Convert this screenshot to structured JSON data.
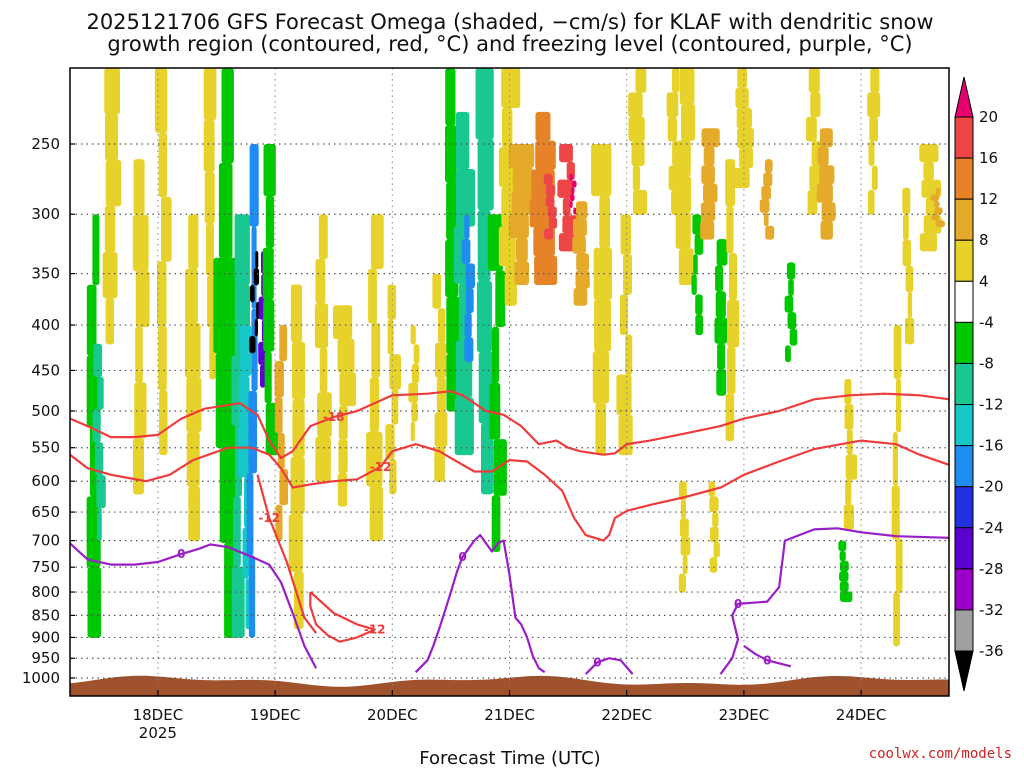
{
  "chart_data": {
    "type": "heatmap",
    "title_lines": [
      "2025121706 GFS Forecast Omega (shaded, −cm/s) for KLAF with dendritic snow",
      "growth region (contoured, red, °C) and freezing level (contoured, purple, °C)"
    ],
    "xlabel": "Forecast Time (UTC)",
    "credit": "coolwx.com/models",
    "x_range_days": [
      17.25,
      24.75
    ],
    "x_ticks": [
      {
        "x": 18,
        "label": "18DEC",
        "sub": "2025"
      },
      {
        "x": 19,
        "label": "19DEC",
        "sub": ""
      },
      {
        "x": 20,
        "label": "20DEC",
        "sub": ""
      },
      {
        "x": 21,
        "label": "21DEC",
        "sub": ""
      },
      {
        "x": 22,
        "label": "22DEC",
        "sub": ""
      },
      {
        "x": 23,
        "label": "23DEC",
        "sub": ""
      },
      {
        "x": 24,
        "label": "24DEC",
        "sub": ""
      }
    ],
    "y_range_hpa": [
      200,
      1030
    ],
    "y_ticks": [
      250,
      300,
      350,
      400,
      450,
      500,
      550,
      600,
      650,
      700,
      750,
      800,
      850,
      900,
      950,
      1000
    ],
    "colorbar": {
      "colors": [
        "#000000",
        "#a0a0a0",
        "#9a00c8",
        "#5a00d0",
        "#2032e0",
        "#1e8cf0",
        "#18c8c8",
        "#18c890",
        "#00c800",
        "#ffffff",
        "#e6d22a",
        "#e6aa2a",
        "#e68228",
        "#ee4646",
        "#e6006e"
      ],
      "labels": [
        "-36",
        "-32",
        "-28",
        "-24",
        "-20",
        "-16",
        "-12",
        "-8",
        "-4",
        "4",
        "8",
        "12",
        "16",
        "20"
      ],
      "under_color": "#000000",
      "over_color": "#e6006e"
    },
    "contours": {
      "red": [
        {
          "label": "-18",
          "points": [
            [
              17.25,
              510
            ],
            [
              17.4,
              520
            ],
            [
              17.6,
              535
            ],
            [
              17.8,
              535
            ],
            [
              18.0,
              532
            ],
            [
              18.2,
              510
            ],
            [
              18.4,
              497
            ],
            [
              18.7,
              490
            ],
            [
              18.85,
              505
            ],
            [
              18.95,
              540
            ],
            [
              19.05,
              565
            ],
            [
              19.15,
              555
            ],
            [
              19.3,
              520
            ],
            [
              19.5,
              508
            ],
            [
              19.7,
              500
            ],
            [
              20.0,
              480
            ],
            [
              20.3,
              478
            ],
            [
              20.5,
              475
            ],
            [
              20.6,
              480
            ],
            [
              20.8,
              500
            ],
            [
              20.95,
              505
            ],
            [
              21.1,
              520
            ],
            [
              21.25,
              545
            ],
            [
              21.4,
              540
            ],
            [
              21.5,
              550
            ],
            [
              21.6,
              555
            ],
            [
              21.8,
              560
            ],
            [
              21.9,
              558
            ],
            [
              22.0,
              545
            ],
            [
              22.2,
              540
            ],
            [
              22.5,
              530
            ],
            [
              22.8,
              520
            ],
            [
              23.0,
              510
            ],
            [
              23.3,
              500
            ],
            [
              23.6,
              485
            ],
            [
              23.9,
              480
            ],
            [
              24.2,
              478
            ],
            [
              24.5,
              480
            ],
            [
              24.75,
              485
            ]
          ]
        },
        {
          "label": "-12",
          "points": [
            [
              17.25,
              560
            ],
            [
              17.4,
              580
            ],
            [
              17.6,
              590
            ],
            [
              17.9,
              600
            ],
            [
              18.1,
              590
            ],
            [
              18.3,
              568
            ],
            [
              18.6,
              550
            ],
            [
              18.8,
              550
            ],
            [
              18.95,
              560
            ],
            [
              19.05,
              580
            ],
            [
              19.15,
              610
            ],
            [
              19.3,
              605
            ],
            [
              19.5,
              600
            ],
            [
              19.7,
              597
            ],
            [
              19.9,
              578
            ],
            [
              20.0,
              555
            ],
            [
              20.2,
              545
            ],
            [
              20.4,
              555
            ],
            [
              20.5,
              565
            ],
            [
              20.7,
              585
            ],
            [
              20.85,
              585
            ],
            [
              21.0,
              568
            ],
            [
              21.15,
              570
            ],
            [
              21.3,
              590
            ],
            [
              21.45,
              615
            ],
            [
              21.55,
              660
            ],
            [
              21.65,
              690
            ],
            [
              21.8,
              700
            ],
            [
              21.85,
              690
            ],
            [
              21.9,
              660
            ],
            [
              22.0,
              648
            ],
            [
              22.2,
              638
            ],
            [
              22.5,
              625
            ],
            [
              22.8,
              610
            ],
            [
              23.0,
              590
            ],
            [
              23.3,
              570
            ],
            [
              23.6,
              552
            ],
            [
              24.0,
              540
            ],
            [
              24.3,
              545
            ],
            [
              24.5,
              560
            ],
            [
              24.75,
              575
            ]
          ]
        },
        {
          "label": "-12",
          "points": [
            [
              18.85,
              590
            ],
            [
              18.95,
              660
            ],
            [
              19.1,
              740
            ],
            [
              19.25,
              855
            ],
            [
              19.35,
              890
            ]
          ]
        },
        {
          "label": "-12",
          "points": [
            [
              19.3,
              800
            ],
            [
              19.5,
              845
            ],
            [
              19.7,
              870
            ],
            [
              19.85,
              882
            ],
            [
              19.7,
              900
            ],
            [
              19.55,
              910
            ],
            [
              19.45,
              895
            ],
            [
              19.35,
              870
            ],
            [
              19.3,
              830
            ],
            [
              19.3,
              800
            ]
          ]
        }
      ],
      "purple": [
        {
          "label": "0",
          "points": [
            [
              17.25,
              705
            ],
            [
              17.4,
              735
            ],
            [
              17.6,
              745
            ],
            [
              17.8,
              745
            ],
            [
              18.0,
              740
            ],
            [
              18.2,
              725
            ],
            [
              18.35,
              715
            ],
            [
              18.45,
              707
            ],
            [
              18.6,
              712
            ],
            [
              18.8,
              730
            ],
            [
              18.95,
              745
            ],
            [
              19.05,
              780
            ],
            [
              19.15,
              845
            ],
            [
              19.25,
              920
            ],
            [
              19.35,
              975
            ]
          ]
        },
        {
          "label": "0",
          "points": [
            [
              20.2,
              985
            ],
            [
              20.3,
              955
            ],
            [
              20.35,
              920
            ],
            [
              20.4,
              880
            ],
            [
              20.45,
              840
            ],
            [
              20.5,
              800
            ],
            [
              20.55,
              760
            ],
            [
              20.6,
              730
            ],
            [
              20.7,
              700
            ],
            [
              20.75,
              690
            ],
            [
              20.85,
              720
            ],
            [
              20.9,
              705
            ],
            [
              20.95,
              700
            ],
            [
              21.0,
              765
            ],
            [
              21.05,
              855
            ],
            [
              21.1,
              870
            ],
            [
              21.15,
              900
            ],
            [
              21.2,
              945
            ],
            [
              21.25,
              975
            ],
            [
              21.3,
              985
            ]
          ]
        },
        {
          "label": "0",
          "points": [
            [
              21.65,
              990
            ],
            [
              21.75,
              960
            ],
            [
              21.85,
              950
            ],
            [
              21.95,
              955
            ],
            [
              22.05,
              990
            ]
          ]
        },
        {
          "label": "0",
          "points": [
            [
              22.8,
              990
            ],
            [
              22.9,
              950
            ],
            [
              22.95,
              905
            ],
            [
              22.9,
              850
            ],
            [
              22.95,
              825
            ],
            [
              23.2,
              820
            ],
            [
              23.3,
              790
            ],
            [
              23.35,
              700
            ],
            [
              23.5,
              688
            ],
            [
              23.6,
              680
            ],
            [
              23.8,
              678
            ],
            [
              24.0,
              685
            ],
            [
              24.3,
              692
            ],
            [
              24.75,
              695
            ]
          ]
        },
        {
          "label": "0",
          "points": [
            [
              23.4,
              970
            ],
            [
              23.2,
              955
            ],
            [
              23.1,
              940
            ],
            [
              23.0,
              920
            ]
          ]
        }
      ]
    }
  }
}
